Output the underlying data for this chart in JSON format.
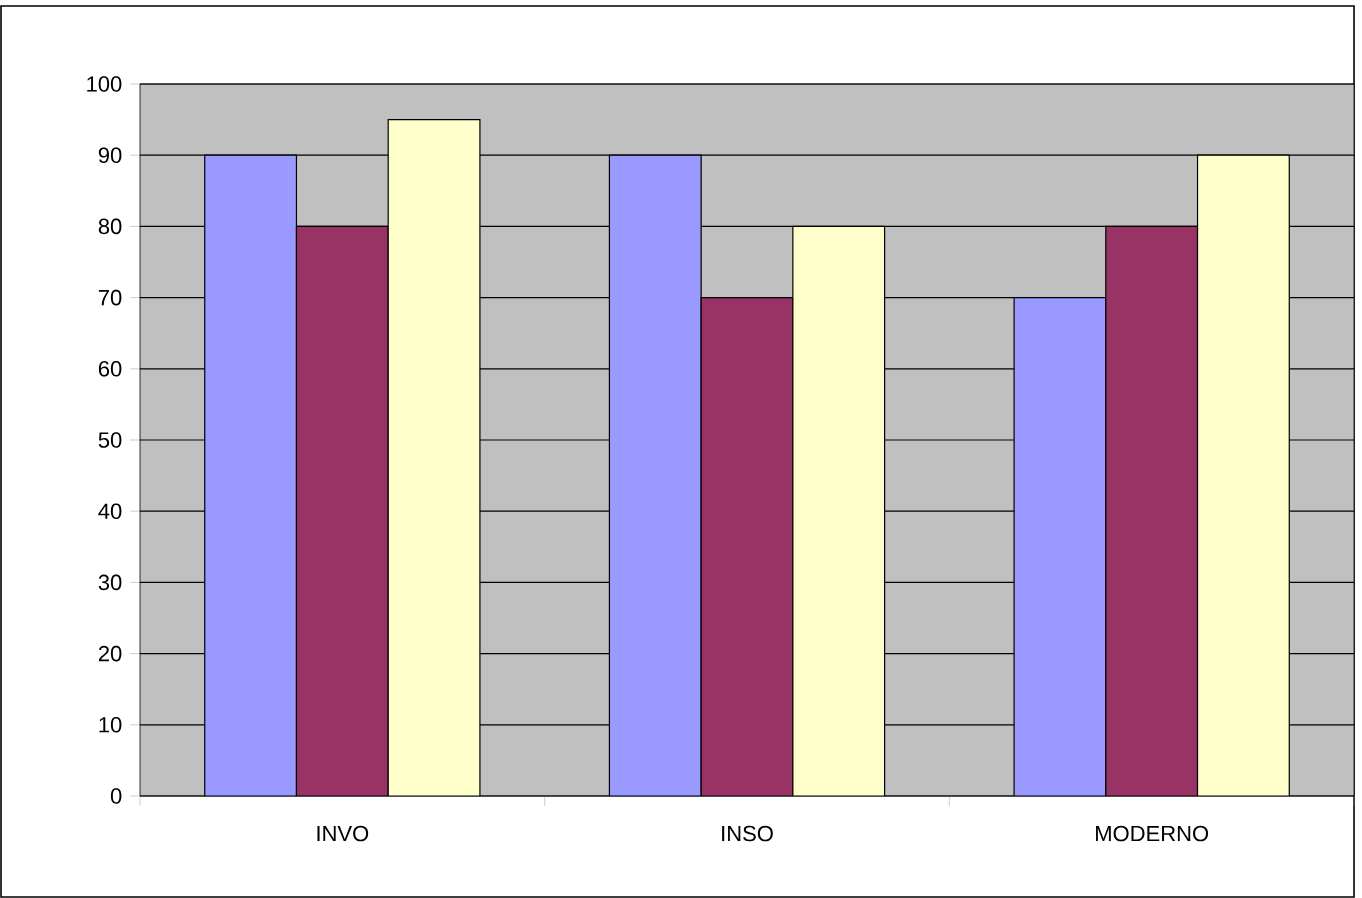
{
  "chart_data": {
    "type": "bar",
    "categories": [
      "INVO",
      "INSO",
      "MODERNO"
    ],
    "series": [
      {
        "color": "#9999ff",
        "values": [
          90,
          90,
          70
        ]
      },
      {
        "color": "#993366",
        "values": [
          80,
          70,
          80
        ]
      },
      {
        "color": "#ffffcc",
        "values": [
          95,
          80,
          90
        ]
      }
    ],
    "ylim": [
      0,
      100
    ],
    "yticks": [
      0,
      10,
      20,
      30,
      40,
      50,
      60,
      70,
      80,
      90,
      100
    ],
    "grid": "y"
  }
}
